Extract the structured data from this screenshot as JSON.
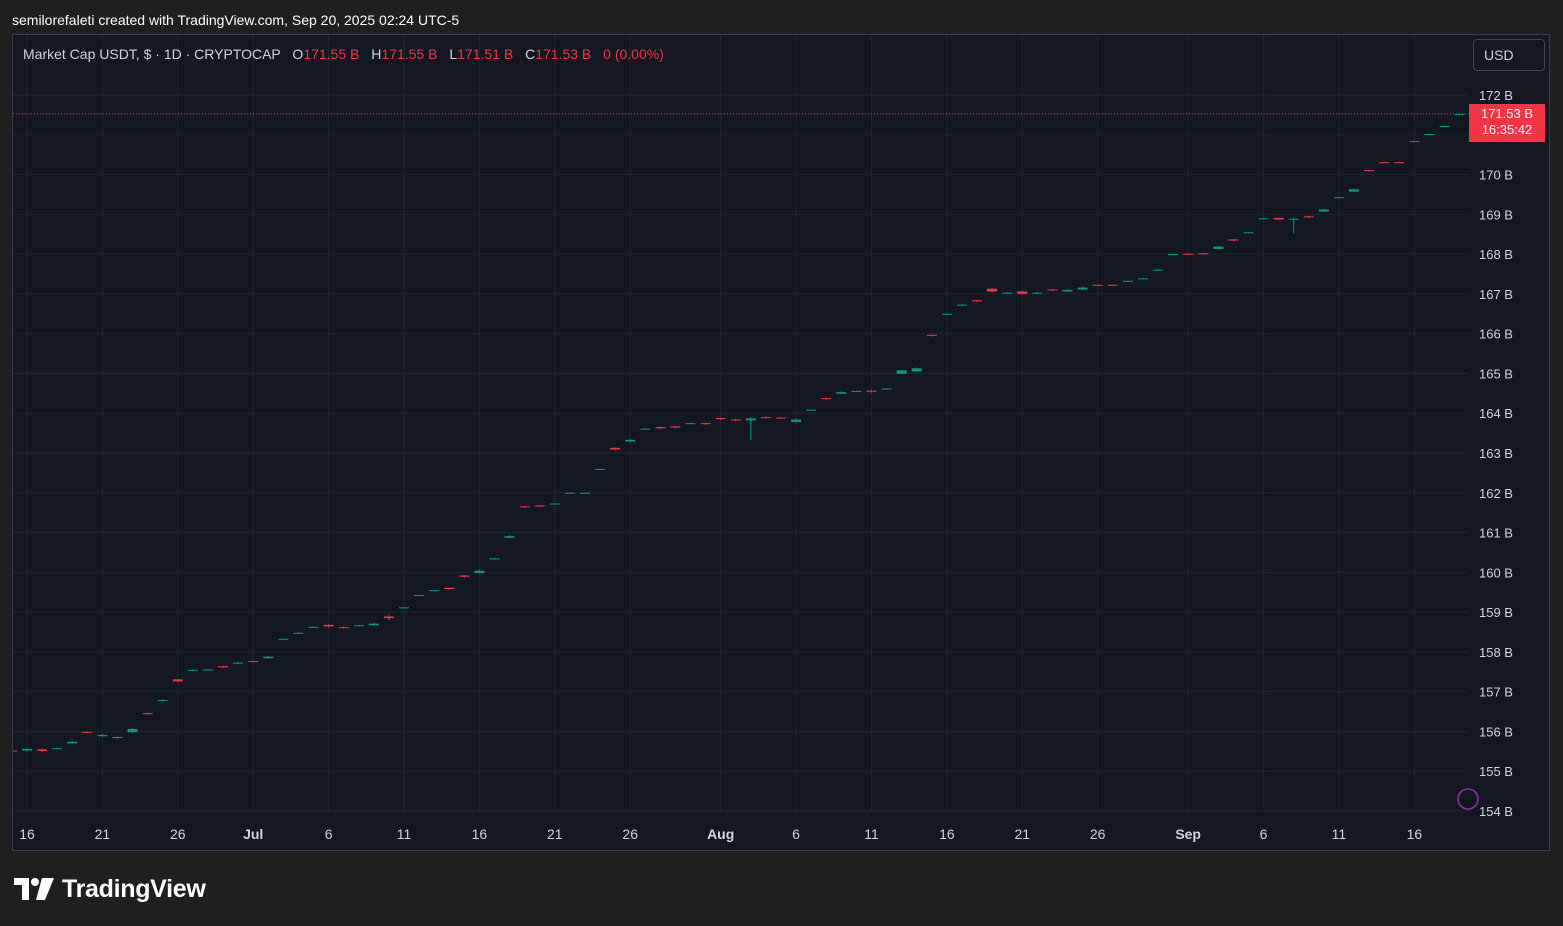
{
  "header": {
    "attribution": "semilorefaleti created with TradingView.com, Sep 20, 2025 02:24 UTC-5"
  },
  "legend": {
    "symbol": "Market Cap USDT, $ · 1D · CRYPTOCAP",
    "open_label": "O",
    "open_value": "171.55 B",
    "high_label": "H",
    "high_value": "171.55 B",
    "low_label": "L",
    "low_value": "171.51 B",
    "close_label": "C",
    "close_value": "171.53 B",
    "change": "0 (0.00%)"
  },
  "currency_button": {
    "label": "USD"
  },
  "last_price": {
    "value": "171.53 B",
    "countdown": "16:35:42"
  },
  "footer": {
    "brand": "TradingView"
  },
  "colors": {
    "up": "#089981",
    "down": "#f23645",
    "background": "#131722",
    "grid": "#20242f",
    "text": "#d1d4dc"
  },
  "chart_data": {
    "type": "candlestick",
    "title": "Market Cap USDT, $ · 1D · CRYPTOCAP",
    "y_unit": "B",
    "ylim": [
      154,
      172.4
    ],
    "y_ticks": [
      154,
      155,
      156,
      157,
      158,
      159,
      160,
      161,
      162,
      163,
      164,
      165,
      166,
      167,
      168,
      169,
      170,
      171,
      172
    ],
    "y_tick_labels": [
      "154 B",
      "155 B",
      "156 B",
      "157 B",
      "158 B",
      "159 B",
      "160 B",
      "161 B",
      "162 B",
      "163 B",
      "164 B",
      "165 B",
      "166 B",
      "167 B",
      "168 B",
      "169 B",
      "170 B",
      "",
      "172 B"
    ],
    "x_ticks": [
      {
        "label": "16",
        "date": "2025-06-16",
        "bold": false
      },
      {
        "label": "21",
        "date": "2025-06-21",
        "bold": false
      },
      {
        "label": "26",
        "date": "2025-06-26",
        "bold": false
      },
      {
        "label": "Jul",
        "date": "2025-07-01",
        "bold": true
      },
      {
        "label": "6",
        "date": "2025-07-06",
        "bold": false
      },
      {
        "label": "11",
        "date": "2025-07-11",
        "bold": false
      },
      {
        "label": "16",
        "date": "2025-07-16",
        "bold": false
      },
      {
        "label": "21",
        "date": "2025-07-21",
        "bold": false
      },
      {
        "label": "26",
        "date": "2025-07-26",
        "bold": false
      },
      {
        "label": "Aug",
        "date": "2025-08-01",
        "bold": true
      },
      {
        "label": "6",
        "date": "2025-08-06",
        "bold": false
      },
      {
        "label": "11",
        "date": "2025-08-11",
        "bold": false
      },
      {
        "label": "16",
        "date": "2025-08-16",
        "bold": false
      },
      {
        "label": "21",
        "date": "2025-08-21",
        "bold": false
      },
      {
        "label": "26",
        "date": "2025-08-26",
        "bold": false
      },
      {
        "label": "Sep",
        "date": "2025-09-01",
        "bold": true
      },
      {
        "label": "6",
        "date": "2025-09-06",
        "bold": false
      },
      {
        "label": "11",
        "date": "2025-09-11",
        "bold": false
      },
      {
        "label": "16",
        "date": "2025-09-16",
        "bold": false
      }
    ],
    "last_price": 171.53,
    "candles": [
      {
        "date": "2025-06-15",
        "o": 155.52,
        "h": 155.55,
        "l": 155.48,
        "c": 155.5
      },
      {
        "date": "2025-06-16",
        "o": 155.52,
        "h": 155.58,
        "l": 155.5,
        "c": 155.56
      },
      {
        "date": "2025-06-17",
        "o": 155.55,
        "h": 155.57,
        "l": 155.49,
        "c": 155.51
      },
      {
        "date": "2025-06-18",
        "o": 155.56,
        "h": 155.6,
        "l": 155.55,
        "c": 155.58
      },
      {
        "date": "2025-06-19",
        "o": 155.7,
        "h": 155.76,
        "l": 155.69,
        "c": 155.74
      },
      {
        "date": "2025-06-20",
        "o": 155.99,
        "h": 156.0,
        "l": 155.96,
        "c": 155.97
      },
      {
        "date": "2025-06-21",
        "o": 155.88,
        "h": 155.93,
        "l": 155.87,
        "c": 155.91
      },
      {
        "date": "2025-06-22",
        "o": 155.86,
        "h": 155.87,
        "l": 155.82,
        "c": 155.84
      },
      {
        "date": "2025-06-23",
        "o": 155.98,
        "h": 156.08,
        "l": 155.97,
        "c": 156.06
      },
      {
        "date": "2025-06-24",
        "o": 156.46,
        "h": 156.47,
        "l": 156.42,
        "c": 156.44
      },
      {
        "date": "2025-06-25",
        "o": 156.77,
        "h": 156.81,
        "l": 156.76,
        "c": 156.79
      },
      {
        "date": "2025-06-26",
        "o": 157.31,
        "h": 157.32,
        "l": 157.24,
        "c": 157.26
      },
      {
        "date": "2025-06-27",
        "o": 157.53,
        "h": 157.56,
        "l": 157.52,
        "c": 157.55
      },
      {
        "date": "2025-06-28",
        "o": 157.55,
        "h": 157.57,
        "l": 157.54,
        "c": 157.56
      },
      {
        "date": "2025-06-29",
        "o": 157.64,
        "h": 157.65,
        "l": 157.59,
        "c": 157.61
      },
      {
        "date": "2025-06-30",
        "o": 157.71,
        "h": 157.75,
        "l": 157.7,
        "c": 157.73
      },
      {
        "date": "2025-07-01",
        "o": 157.77,
        "h": 157.78,
        "l": 157.73,
        "c": 157.75
      },
      {
        "date": "2025-07-02",
        "o": 157.84,
        "h": 157.9,
        "l": 157.83,
        "c": 157.88
      },
      {
        "date": "2025-07-03",
        "o": 158.32,
        "h": 158.34,
        "l": 158.31,
        "c": 158.33
      },
      {
        "date": "2025-07-04",
        "o": 158.47,
        "h": 158.5,
        "l": 158.46,
        "c": 158.48
      },
      {
        "date": "2025-07-05",
        "o": 158.62,
        "h": 158.65,
        "l": 158.61,
        "c": 158.63
      },
      {
        "date": "2025-07-06",
        "o": 158.68,
        "h": 158.69,
        "l": 158.62,
        "c": 158.64
      },
      {
        "date": "2025-07-07",
        "o": 158.62,
        "h": 158.64,
        "l": 158.58,
        "c": 158.6
      },
      {
        "date": "2025-07-08",
        "o": 158.65,
        "h": 158.68,
        "l": 158.64,
        "c": 158.67
      },
      {
        "date": "2025-07-09",
        "o": 158.67,
        "h": 158.73,
        "l": 158.66,
        "c": 158.71
      },
      {
        "date": "2025-07-10",
        "o": 158.89,
        "h": 158.92,
        "l": 158.8,
        "c": 158.85
      },
      {
        "date": "2025-07-11",
        "o": 159.1,
        "h": 159.13,
        "l": 159.09,
        "c": 159.12
      },
      {
        "date": "2025-07-12",
        "o": 159.42,
        "h": 159.44,
        "l": 159.41,
        "c": 159.43
      },
      {
        "date": "2025-07-13",
        "o": 159.53,
        "h": 159.56,
        "l": 159.52,
        "c": 159.55
      },
      {
        "date": "2025-07-14",
        "o": 159.61,
        "h": 159.62,
        "l": 159.56,
        "c": 159.58
      },
      {
        "date": "2025-07-15",
        "o": 159.92,
        "h": 159.93,
        "l": 159.87,
        "c": 159.89
      },
      {
        "date": "2025-07-16",
        "o": 159.98,
        "h": 160.06,
        "l": 159.97,
        "c": 160.04
      },
      {
        "date": "2025-07-17",
        "o": 160.33,
        "h": 160.36,
        "l": 160.32,
        "c": 160.35
      },
      {
        "date": "2025-07-18",
        "o": 160.87,
        "h": 160.93,
        "l": 160.86,
        "c": 160.91
      },
      {
        "date": "2025-07-19",
        "o": 161.66,
        "h": 161.67,
        "l": 161.62,
        "c": 161.64
      },
      {
        "date": "2025-07-20",
        "o": 161.68,
        "h": 161.69,
        "l": 161.65,
        "c": 161.67
      },
      {
        "date": "2025-07-21",
        "o": 161.71,
        "h": 161.74,
        "l": 161.7,
        "c": 161.73
      },
      {
        "date": "2025-07-22",
        "o": 161.99,
        "h": 162.01,
        "l": 161.98,
        "c": 162.0
      },
      {
        "date": "2025-07-23",
        "o": 161.99,
        "h": 162.01,
        "l": 161.98,
        "c": 162.0
      },
      {
        "date": "2025-07-24",
        "o": 162.58,
        "h": 162.61,
        "l": 162.57,
        "c": 162.6
      },
      {
        "date": "2025-07-25",
        "o": 163.13,
        "h": 163.14,
        "l": 163.07,
        "c": 163.09
      },
      {
        "date": "2025-07-26",
        "o": 163.29,
        "h": 163.35,
        "l": 163.28,
        "c": 163.33
      },
      {
        "date": "2025-07-27",
        "o": 163.6,
        "h": 163.63,
        "l": 163.59,
        "c": 163.61
      },
      {
        "date": "2025-07-28",
        "o": 163.65,
        "h": 163.66,
        "l": 163.6,
        "c": 163.62
      },
      {
        "date": "2025-07-29",
        "o": 163.67,
        "h": 163.68,
        "l": 163.62,
        "c": 163.64
      },
      {
        "date": "2025-07-30",
        "o": 163.73,
        "h": 163.76,
        "l": 163.72,
        "c": 163.75
      },
      {
        "date": "2025-07-31",
        "o": 163.75,
        "h": 163.76,
        "l": 163.71,
        "c": 163.73
      },
      {
        "date": "2025-08-01",
        "o": 163.88,
        "h": 163.89,
        "l": 163.83,
        "c": 163.85
      },
      {
        "date": "2025-08-02",
        "o": 163.84,
        "h": 163.86,
        "l": 163.8,
        "c": 163.82
      },
      {
        "date": "2025-08-03",
        "o": 163.82,
        "h": 163.9,
        "l": 163.32,
        "c": 163.87
      },
      {
        "date": "2025-08-04",
        "o": 163.9,
        "h": 163.92,
        "l": 163.88,
        "c": 163.89
      },
      {
        "date": "2025-08-05",
        "o": 163.89,
        "h": 163.9,
        "l": 163.86,
        "c": 163.87
      },
      {
        "date": "2025-08-06",
        "o": 163.78,
        "h": 163.86,
        "l": 163.77,
        "c": 163.84
      },
      {
        "date": "2025-08-07",
        "o": 164.07,
        "h": 164.1,
        "l": 164.06,
        "c": 164.09
      },
      {
        "date": "2025-08-08",
        "o": 164.38,
        "h": 164.39,
        "l": 164.34,
        "c": 164.36
      },
      {
        "date": "2025-08-09",
        "o": 164.49,
        "h": 164.55,
        "l": 164.48,
        "c": 164.53
      },
      {
        "date": "2025-08-10",
        "o": 164.56,
        "h": 164.57,
        "l": 164.54,
        "c": 164.55
      },
      {
        "date": "2025-08-11",
        "o": 164.57,
        "h": 164.58,
        "l": 164.52,
        "c": 164.54
      },
      {
        "date": "2025-08-12",
        "o": 164.6,
        "h": 164.63,
        "l": 164.59,
        "c": 164.62
      },
      {
        "date": "2025-08-13",
        "o": 164.99,
        "h": 165.09,
        "l": 164.98,
        "c": 165.08
      },
      {
        "date": "2025-08-14",
        "o": 165.05,
        "h": 165.15,
        "l": 165.04,
        "c": 165.13
      },
      {
        "date": "2025-08-15",
        "o": 165.97,
        "h": 165.98,
        "l": 165.93,
        "c": 165.95
      },
      {
        "date": "2025-08-16",
        "o": 166.48,
        "h": 166.51,
        "l": 166.47,
        "c": 166.5
      },
      {
        "date": "2025-08-17",
        "o": 166.71,
        "h": 166.74,
        "l": 166.7,
        "c": 166.73
      },
      {
        "date": "2025-08-18",
        "o": 166.84,
        "h": 166.85,
        "l": 166.79,
        "c": 166.81
      },
      {
        "date": "2025-08-19",
        "o": 167.13,
        "h": 167.14,
        "l": 167.04,
        "c": 167.06
      },
      {
        "date": "2025-08-20",
        "o": 167.02,
        "h": 167.04,
        "l": 167.0,
        "c": 167.03
      },
      {
        "date": "2025-08-21",
        "o": 167.06,
        "h": 167.07,
        "l": 166.98,
        "c": 167.0
      },
      {
        "date": "2025-08-22",
        "o": 167.01,
        "h": 167.05,
        "l": 167.0,
        "c": 167.03
      },
      {
        "date": "2025-08-23",
        "o": 167.11,
        "h": 167.12,
        "l": 167.07,
        "c": 167.09
      },
      {
        "date": "2025-08-24",
        "o": 167.06,
        "h": 167.11,
        "l": 167.05,
        "c": 167.1
      },
      {
        "date": "2025-08-25",
        "o": 167.11,
        "h": 167.18,
        "l": 167.1,
        "c": 167.16
      },
      {
        "date": "2025-08-26",
        "o": 167.23,
        "h": 167.24,
        "l": 167.2,
        "c": 167.21
      },
      {
        "date": "2025-08-27",
        "o": 167.23,
        "h": 167.24,
        "l": 167.2,
        "c": 167.21
      },
      {
        "date": "2025-08-28",
        "o": 167.31,
        "h": 167.34,
        "l": 167.3,
        "c": 167.33
      },
      {
        "date": "2025-08-29",
        "o": 167.37,
        "h": 167.4,
        "l": 167.36,
        "c": 167.39
      },
      {
        "date": "2025-08-30",
        "o": 167.59,
        "h": 167.62,
        "l": 167.58,
        "c": 167.61
      },
      {
        "date": "2025-08-31",
        "o": 167.99,
        "h": 168.01,
        "l": 167.98,
        "c": 168.0
      },
      {
        "date": "2025-09-01",
        "o": 168.01,
        "h": 168.02,
        "l": 167.99,
        "c": 168.0
      },
      {
        "date": "2025-09-02",
        "o": 168.02,
        "h": 168.03,
        "l": 167.99,
        "c": 168.01
      },
      {
        "date": "2025-09-03",
        "o": 168.13,
        "h": 168.2,
        "l": 168.12,
        "c": 168.19
      },
      {
        "date": "2025-09-04",
        "o": 168.37,
        "h": 168.38,
        "l": 168.32,
        "c": 168.34
      },
      {
        "date": "2025-09-05",
        "o": 168.53,
        "h": 168.56,
        "l": 168.52,
        "c": 168.55
      },
      {
        "date": "2025-09-06",
        "o": 168.88,
        "h": 168.91,
        "l": 168.87,
        "c": 168.9
      },
      {
        "date": "2025-09-07",
        "o": 168.91,
        "h": 168.92,
        "l": 168.85,
        "c": 168.87
      },
      {
        "date": "2025-09-08",
        "o": 168.88,
        "h": 168.91,
        "l": 168.52,
        "c": 168.89
      },
      {
        "date": "2025-09-09",
        "o": 168.95,
        "h": 168.96,
        "l": 168.91,
        "c": 168.93
      },
      {
        "date": "2025-09-10",
        "o": 169.07,
        "h": 169.14,
        "l": 169.06,
        "c": 169.12
      },
      {
        "date": "2025-09-11",
        "o": 169.41,
        "h": 169.44,
        "l": 169.4,
        "c": 169.43
      },
      {
        "date": "2025-09-12",
        "o": 169.57,
        "h": 169.65,
        "l": 169.56,
        "c": 169.63
      },
      {
        "date": "2025-09-13",
        "o": 170.11,
        "h": 170.12,
        "l": 170.07,
        "c": 170.09
      },
      {
        "date": "2025-09-14",
        "o": 170.31,
        "h": 170.32,
        "l": 170.29,
        "c": 170.3
      },
      {
        "date": "2025-09-15",
        "o": 170.31,
        "h": 170.32,
        "l": 170.28,
        "c": 170.29
      },
      {
        "date": "2025-09-16",
        "o": 170.82,
        "h": 170.85,
        "l": 170.81,
        "c": 170.84
      },
      {
        "date": "2025-09-17",
        "o": 171.0,
        "h": 171.03,
        "l": 170.99,
        "c": 171.02
      },
      {
        "date": "2025-09-18",
        "o": 171.2,
        "h": 171.23,
        "l": 171.19,
        "c": 171.22
      },
      {
        "date": "2025-09-19",
        "o": 171.5,
        "h": 171.53,
        "l": 171.49,
        "c": 171.52
      },
      {
        "date": "2025-09-20",
        "o": 171.55,
        "h": 171.55,
        "l": 171.51,
        "c": 171.53
      }
    ]
  }
}
